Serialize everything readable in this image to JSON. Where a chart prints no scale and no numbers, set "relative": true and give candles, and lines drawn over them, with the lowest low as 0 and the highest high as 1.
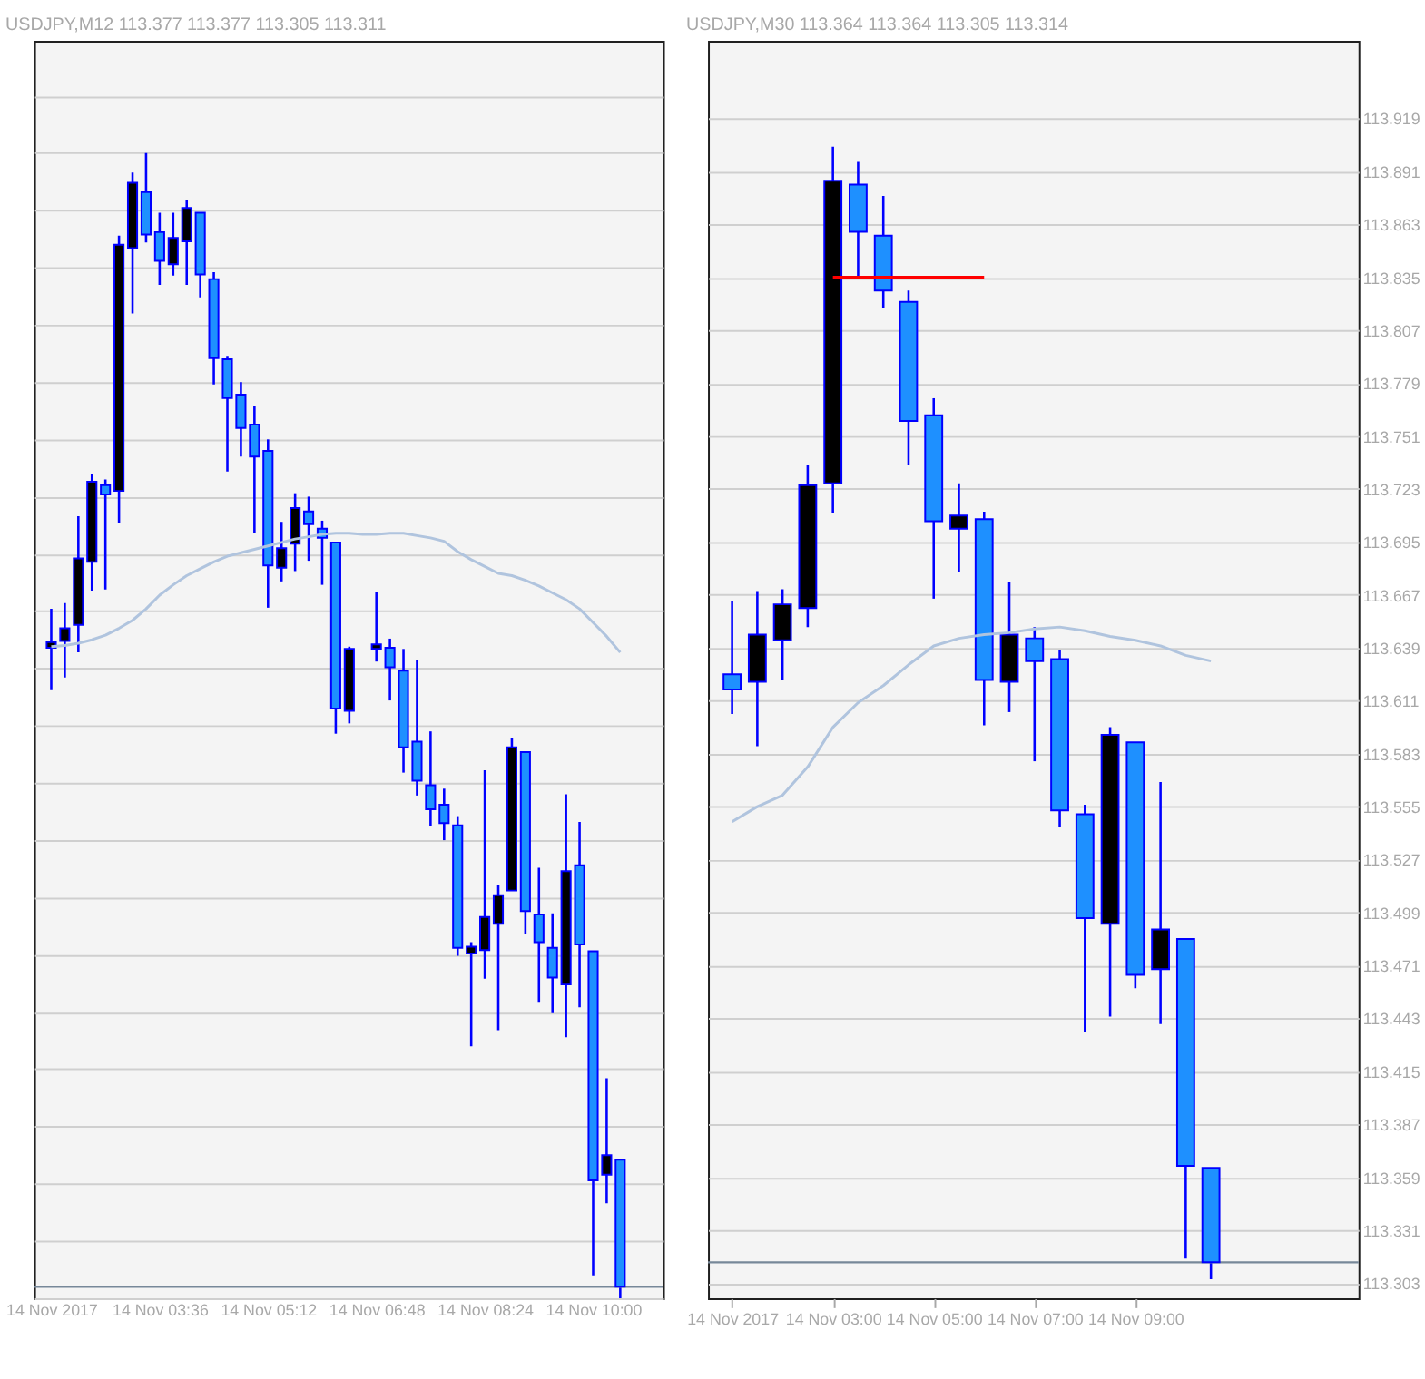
{
  "chart_data": [
    {
      "type": "candlestick",
      "title": "USDJPY,M12  113.377 113.377 113.305 113.311",
      "relative": true,
      "grid": "y",
      "tick_labels": "x",
      "categories": [
        "14 Nov 2017",
        null,
        null,
        null,
        null,
        null,
        null,
        null,
        "14 Nov 03:36",
        null,
        null,
        null,
        null,
        null,
        null,
        null,
        "14 Nov 05:12",
        null,
        null,
        null,
        null,
        null,
        null,
        null,
        "14 Nov 06:48",
        null,
        null,
        null,
        null,
        null,
        null,
        null,
        "14 Nov 08:24",
        null,
        null,
        null,
        null,
        null,
        null,
        null,
        "14 Nov 10:00",
        null,
        null,
        null,
        null
      ],
      "series": [
        {
          "type": "candlestick",
          "color": "#0000ff",
          "ohlc": [
            [
              0.568,
              0.602,
              0.531,
              0.573
            ],
            [
              0.574,
              0.607,
              0.542,
              0.585
            ],
            [
              0.588,
              0.683,
              0.564,
              0.646
            ],
            [
              0.643,
              0.72,
              0.618,
              0.713
            ],
            [
              0.71,
              0.715,
              0.619,
              0.702
            ],
            [
              0.705,
              0.928,
              0.677,
              0.92
            ],
            [
              0.917,
              0.983,
              0.86,
              0.974
            ],
            [
              0.966,
              1.0,
              0.922,
              0.929
            ],
            [
              0.931,
              0.948,
              0.885,
              0.906
            ],
            [
              0.903,
              0.948,
              0.893,
              0.926
            ],
            [
              0.923,
              0.959,
              0.885,
              0.952
            ],
            [
              0.948,
              0.948,
              0.874,
              0.894
            ],
            [
              0.89,
              0.896,
              0.798,
              0.821
            ],
            [
              0.82,
              0.823,
              0.722,
              0.786
            ],
            [
              0.789,
              0.8,
              0.735,
              0.76
            ],
            [
              0.763,
              0.779,
              0.668,
              0.735
            ],
            [
              0.74,
              0.75,
              0.603,
              0.64
            ],
            [
              0.638,
              0.678,
              0.626,
              0.655
            ],
            [
              0.659,
              0.703,
              0.635,
              0.69
            ],
            [
              0.687,
              0.7,
              0.644,
              0.676
            ],
            [
              0.672,
              0.679,
              0.623,
              0.664
            ],
            [
              0.66,
              0.66,
              0.493,
              0.515
            ],
            [
              0.513,
              0.569,
              0.502,
              0.567
            ],
            null,
            [
              0.567,
              0.617,
              0.556,
              0.571
            ],
            [
              0.568,
              0.576,
              0.522,
              0.551
            ],
            [
              0.548,
              0.567,
              0.459,
              0.481
            ],
            [
              0.486,
              0.557,
              0.439,
              0.452
            ],
            [
              0.448,
              0.495,
              0.412,
              0.427
            ],
            [
              0.431,
              0.445,
              0.4,
              0.415
            ],
            [
              0.413,
              0.421,
              0.299,
              0.306
            ],
            [
              0.301,
              0.311,
              0.22,
              0.307
            ],
            [
              0.304,
              0.461,
              0.279,
              0.333
            ],
            [
              0.327,
              0.361,
              0.234,
              0.352
            ],
            [
              0.356,
              0.489,
              0.356,
              0.481
            ],
            [
              0.477,
              0.477,
              0.318,
              0.338
            ],
            [
              0.335,
              0.376,
              0.258,
              0.311
            ],
            [
              0.306,
              0.336,
              0.249,
              0.28
            ],
            [
              0.274,
              0.44,
              0.228,
              0.373
            ],
            [
              0.378,
              0.416,
              0.254,
              0.309
            ],
            [
              0.303,
              0.303,
              0.02,
              0.103
            ],
            [
              0.108,
              0.192,
              0.083,
              0.125
            ],
            [
              0.121,
              0.121,
              0.0,
              0.01
            ],
            null,
            null
          ],
          "colors": [
            "#000000",
            "#000000",
            "#000000",
            "#000000",
            "#1e90ff",
            "#000000",
            "#000000",
            "#1e90ff",
            "#1e90ff",
            "#000000",
            "#000000",
            "#1e90ff",
            "#1e90ff",
            "#1e90ff",
            "#1e90ff",
            "#1e90ff",
            "#1e90ff",
            "#000000",
            "#000000",
            "#1e90ff",
            "#1e90ff",
            "#1e90ff",
            "#000000",
            null,
            "#000000",
            "#1e90ff",
            "#1e90ff",
            "#1e90ff",
            "#1e90ff",
            "#1e90ff",
            "#1e90ff",
            "#000000",
            "#000000",
            "#000000",
            "#000000",
            "#1e90ff",
            "#1e90ff",
            "#1e90ff",
            "#000000",
            "#1e90ff",
            "#1e90ff",
            "#000000",
            "#1e90ff",
            null,
            null
          ]
        },
        {
          "type": "line",
          "color": "#b0c4de",
          "values": [
            0.569,
            0.57,
            0.572,
            0.575,
            0.579,
            0.585,
            0.592,
            0.602,
            0.614,
            0.623,
            0.631,
            0.637,
            0.643,
            0.648,
            0.651,
            0.654,
            0.657,
            0.66,
            0.663,
            0.665,
            0.667,
            0.668,
            0.668,
            0.667,
            0.667,
            0.668,
            0.668,
            0.666,
            0.664,
            0.661,
            0.652,
            0.645,
            0.639,
            0.633,
            0.631,
            0.627,
            0.622,
            0.616,
            0.61,
            0.602,
            0.59,
            0.578,
            0.564,
            null,
            null
          ]
        }
      ],
      "ref_lines": [
        {
          "axis": "y",
          "value": 0.01,
          "color": "#778899"
        }
      ]
    },
    {
      "type": "candlestick",
      "title": "USDJPY,M30  113.364 113.364 113.305 113.314",
      "grid": "y",
      "ylim": [
        113.295,
        113.96
      ],
      "categories": [
        "14 Nov 2017",
        null,
        null,
        null,
        "14 Nov 03:00",
        null,
        null,
        null,
        "14 Nov 05:00",
        null,
        null,
        null,
        "14 Nov 07:00",
        null,
        null,
        null,
        "14 Nov 09:00",
        null,
        null,
        null,
        null,
        null,
        null,
        null,
        null
      ],
      "yticks": [
        113.303,
        113.331,
        113.359,
        113.387,
        113.415,
        113.443,
        113.471,
        113.499,
        113.527,
        113.555,
        113.583,
        113.611,
        113.639,
        113.667,
        113.695,
        113.723,
        113.751,
        113.779,
        113.807,
        113.835,
        113.863,
        113.891,
        113.919
      ],
      "series": [
        {
          "type": "candlestick",
          "color": "#0000ff",
          "ohlc": [
            [
              113.625,
              113.664,
              113.604,
              113.617
            ],
            [
              113.621,
              113.669,
              113.587,
              113.646
            ],
            [
              113.643,
              113.67,
              113.622,
              113.662
            ],
            [
              113.66,
              113.736,
              113.65,
              113.725
            ],
            [
              113.726,
              113.904,
              113.71,
              113.886
            ],
            [
              113.884,
              113.896,
              113.835,
              113.859
            ],
            [
              113.857,
              113.878,
              113.819,
              113.828
            ],
            [
              113.822,
              113.828,
              113.736,
              113.759
            ],
            [
              113.762,
              113.771,
              113.665,
              113.706
            ],
            [
              113.702,
              113.726,
              113.679,
              113.709
            ],
            [
              113.707,
              113.711,
              113.598,
              113.622
            ],
            [
              113.621,
              113.674,
              113.605,
              113.646
            ],
            [
              113.644,
              113.65,
              113.579,
              113.632
            ],
            [
              113.633,
              113.638,
              113.544,
              113.553
            ],
            [
              113.551,
              113.556,
              113.436,
              113.496
            ],
            [
              113.493,
              113.597,
              113.444,
              113.593
            ],
            [
              113.589,
              113.589,
              113.459,
              113.466
            ],
            [
              113.469,
              113.568,
              113.44,
              113.49
            ],
            [
              113.485,
              113.485,
              113.316,
              113.365
            ],
            [
              113.364,
              113.364,
              113.305,
              113.314
            ],
            null,
            null,
            null,
            null,
            null
          ],
          "colors": [
            "#1e90ff",
            "#000000",
            "#000000",
            "#000000",
            "#000000",
            "#1e90ff",
            "#1e90ff",
            "#1e90ff",
            "#1e90ff",
            "#000000",
            "#1e90ff",
            "#000000",
            "#1e90ff",
            "#1e90ff",
            "#1e90ff",
            "#000000",
            "#1e90ff",
            "#000000",
            "#1e90ff",
            "#1e90ff",
            null,
            null,
            null,
            null,
            null
          ]
        },
        {
          "type": "line",
          "color": "#b0c4de",
          "values": [
            113.547,
            113.555,
            113.561,
            113.576,
            113.597,
            113.61,
            113.619,
            113.63,
            113.64,
            113.644,
            113.646,
            113.647,
            113.649,
            113.65,
            113.648,
            113.645,
            113.643,
            113.64,
            113.635,
            113.632,
            null,
            null,
            null,
            null,
            null
          ]
        },
        {
          "type": "line",
          "color": "#ff0000",
          "values": [
            null,
            null,
            null,
            null,
            113.835,
            113.835,
            113.835,
            113.835,
            113.835,
            113.835,
            113.835,
            null,
            null,
            null,
            null,
            null,
            null,
            null,
            null,
            null,
            null,
            null,
            null,
            null,
            null
          ]
        }
      ],
      "ref_lines": [
        {
          "axis": "y",
          "value": 113.314,
          "color": "#778899"
        }
      ]
    }
  ]
}
